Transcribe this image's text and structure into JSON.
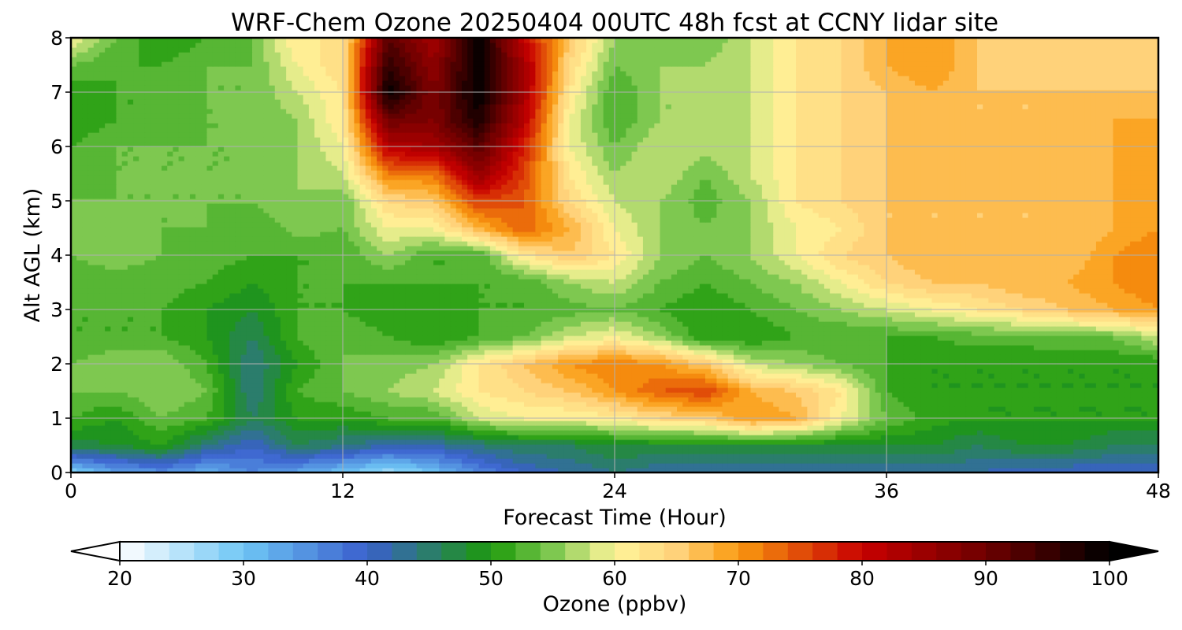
{
  "chart_data": {
    "type": "heatmap",
    "title": "WRF-Chem Ozone  20250404 00UTC 48h fcst at CCNY lidar site",
    "xlabel": "Forecast Time (Hour)",
    "ylabel": "Alt AGL (km)",
    "xlim": [
      0,
      48
    ],
    "ylim": [
      0,
      8
    ],
    "xticks": [
      0,
      12,
      24,
      36,
      48
    ],
    "yticks": [
      0,
      1,
      2,
      3,
      4,
      5,
      6,
      7,
      8
    ],
    "grid": true,
    "x": [
      0,
      2,
      4,
      6,
      8,
      10,
      12,
      14,
      16,
      18,
      20,
      22,
      24,
      26,
      28,
      30,
      32,
      34,
      36,
      38,
      40,
      42,
      44,
      46,
      48
    ],
    "y": [
      0,
      0.5,
      1,
      1.5,
      2,
      2.5,
      3,
      3.5,
      4,
      4.5,
      5,
      5.5,
      6,
      6.5,
      7,
      7.5,
      8
    ],
    "z": [
      [
        28,
        33,
        35,
        32,
        36,
        33,
        30,
        26,
        30,
        36,
        40,
        42,
        44,
        42,
        42,
        42,
        42,
        42,
        42,
        42,
        42,
        40,
        40,
        40,
        40
      ],
      [
        47,
        48,
        50,
        44,
        40,
        46,
        44,
        42,
        42,
        44,
        46,
        46,
        48,
        48,
        48,
        48,
        48,
        48,
        48,
        48,
        46,
        48,
        48,
        46,
        46
      ],
      [
        52,
        50,
        54,
        52,
        46,
        50,
        50,
        52,
        52,
        58,
        60,
        60,
        61,
        64,
        65,
        70,
        68,
        60,
        54,
        51,
        50,
        50,
        50,
        50,
        50
      ],
      [
        54,
        54,
        56,
        54,
        44,
        52,
        54,
        56,
        58,
        62,
        64,
        66,
        70,
        74,
        76,
        68,
        66,
        62,
        52,
        50,
        50,
        50,
        50,
        50,
        50
      ],
      [
        54,
        56,
        56,
        52,
        44,
        50,
        54,
        55,
        56,
        62,
        66,
        70,
        72,
        70,
        66,
        58,
        56,
        54,
        52,
        50,
        50,
        50,
        50,
        50,
        50
      ],
      [
        52,
        52,
        52,
        50,
        46,
        52,
        54,
        52,
        50,
        52,
        54,
        58,
        60,
        56,
        50,
        50,
        52,
        52,
        52,
        52,
        53,
        53,
        54,
        54,
        58
      ],
      [
        52,
        52,
        52,
        50,
        48,
        52,
        52,
        50,
        50,
        52,
        52,
        53,
        54,
        52,
        50,
        52,
        54,
        56,
        58,
        60,
        62,
        64,
        66,
        68,
        70
      ],
      [
        53,
        53,
        53,
        52,
        50,
        52,
        52,
        52,
        52,
        52,
        52,
        56,
        58,
        54,
        52,
        54,
        56,
        60,
        64,
        66,
        66,
        68,
        68,
        70,
        72
      ],
      [
        54,
        55,
        54,
        53,
        52,
        52,
        52,
        56,
        52,
        52,
        62,
        66,
        62,
        56,
        54,
        56,
        60,
        64,
        66,
        68,
        66,
        68,
        66,
        70,
        72
      ],
      [
        55,
        55,
        54,
        54,
        52,
        55,
        54,
        60,
        60,
        68,
        74,
        68,
        60,
        56,
        54,
        56,
        60,
        62,
        66,
        66,
        66,
        66,
        66,
        68,
        70
      ],
      [
        54,
        54,
        54,
        54,
        54,
        56,
        54,
        64,
        66,
        76,
        74,
        64,
        58,
        56,
        53,
        56,
        62,
        64,
        66,
        66,
        66,
        66,
        66,
        68,
        70
      ],
      [
        52,
        54,
        54,
        54,
        54,
        56,
        58,
        72,
        72,
        86,
        76,
        62,
        56,
        58,
        54,
        58,
        62,
        64,
        66,
        66,
        66,
        66,
        66,
        68,
        70
      ],
      [
        52,
        54,
        54,
        54,
        54,
        56,
        60,
        82,
        84,
        92,
        78,
        60,
        54,
        58,
        57,
        58,
        62,
        64,
        66,
        68,
        66,
        66,
        66,
        68,
        70
      ],
      [
        50,
        52,
        52,
        54,
        54,
        56,
        62,
        90,
        88,
        98,
        82,
        60,
        52,
        56,
        56,
        58,
        62,
        64,
        66,
        68,
        66,
        66,
        66,
        68,
        68
      ],
      [
        50,
        52,
        52,
        54,
        54,
        58,
        62,
        100,
        88,
        100,
        84,
        62,
        52,
        56,
        56,
        58,
        62,
        64,
        66,
        68,
        66,
        66,
        66,
        66,
        66
      ],
      [
        54,
        52,
        52,
        54,
        54,
        60,
        64,
        96,
        86,
        100,
        84,
        64,
        54,
        56,
        56,
        58,
        62,
        64,
        68,
        70,
        66,
        64,
        64,
        64,
        64
      ],
      [
        60,
        54,
        50,
        52,
        54,
        62,
        62,
        92,
        84,
        100,
        80,
        66,
        56,
        56,
        54,
        58,
        62,
        64,
        68,
        70,
        66,
        64,
        64,
        64,
        64
      ]
    ],
    "colorbar": {
      "label": "Ozone  (ppbv)",
      "min": 20,
      "max": 100,
      "step": 2,
      "ticks": [
        20,
        30,
        40,
        50,
        60,
        70,
        80,
        90,
        100
      ],
      "extend": "both",
      "colors": {
        "20": "#ffffff",
        "30": "#6ec6f5",
        "40": "#3a5fcd",
        "50": "#1c9a0a",
        "55": "#7ec850",
        "60": "#fff59a",
        "65": "#ffd27a",
        "70": "#fa9a0f",
        "80": "#c80000",
        "90": "#6e0000",
        "100": "#000000"
      }
    }
  }
}
